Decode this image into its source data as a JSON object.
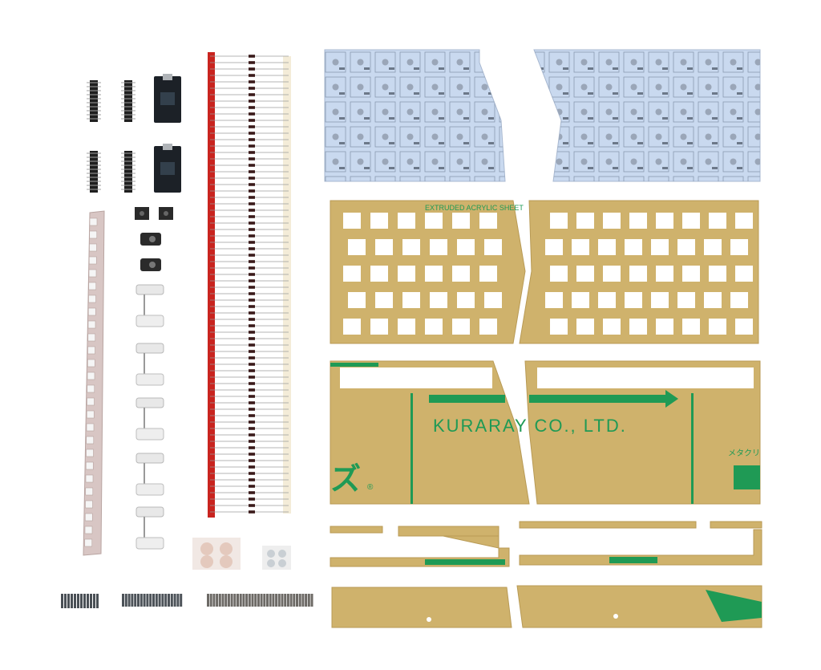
{
  "photo": {
    "background": "#ffffff",
    "acrylic_text": {
      "sheet_label": "EXTRUDED ACRYLIC SHEET",
      "maker": "KURARAY CO., LTD.",
      "jp_text": "メタクリ",
      "registered_mark": "®"
    },
    "parts": [
      "pcb-left-icon",
      "pcb-right-icon",
      "acrylic-plate-left-icon",
      "acrylic-plate-right-icon",
      "bottom-plate-left-icon",
      "bottom-plate-right-icon",
      "diode-strip-icon",
      "led-strip-icon",
      "pro-micro-icon",
      "pin-header-icon",
      "trrs-jack-icon",
      "reset-switch-icon",
      "stabilizer-icon",
      "rubber-feet-icon",
      "screw-icon",
      "spacer-icon"
    ],
    "colors": {
      "pcb": "#c9d9ef",
      "acrylic": "#cfb26c",
      "print_green": "#1f9a55",
      "diode_tape": "#c9241f",
      "led_strip": "#d8c6c4"
    }
  }
}
